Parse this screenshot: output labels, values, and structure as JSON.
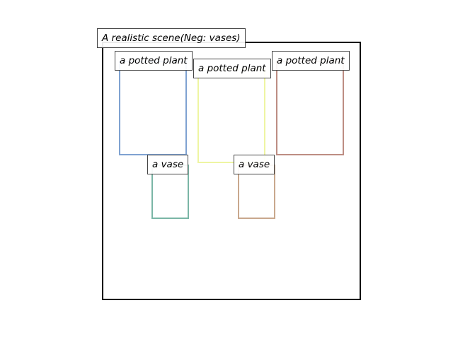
{
  "title": "A realistic scene(Neg: vases)",
  "objects": [
    {
      "label": "a potted plant",
      "color": "#7fa2d1"
    },
    {
      "label": "a potted plant",
      "color": "#eef5a2"
    },
    {
      "label": "a potted plant",
      "color": "#bd8d83"
    },
    {
      "label": "a vase",
      "color": "#7ab6a6"
    },
    {
      "label": "a vase",
      "color": "#c9a88d"
    }
  ]
}
